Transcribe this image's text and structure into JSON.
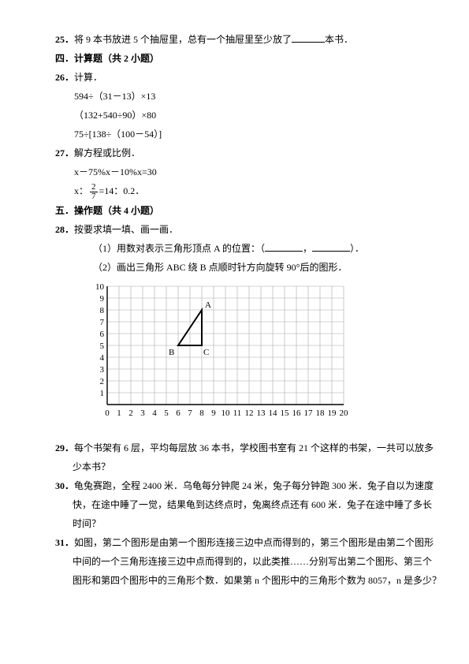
{
  "q25": {
    "num": "25．",
    "pre": "将 9 本书放进 5 个抽屉里，总有一个抽屉里至少放了",
    "post": "本书．"
  },
  "sec4": {
    "title": "四．计算题（共 2 小题）"
  },
  "q26": {
    "num": "26．",
    "title": "计算．",
    "l1": "594÷（31－13）×13",
    "l2": "（132+540÷90）×80",
    "l3": "75÷[138÷（100－54）]"
  },
  "q27": {
    "num": "27．",
    "title": "解方程或比例．",
    "l1": "x－75%x－10%x=30",
    "l2_pre": "x：",
    "frac_num": "2",
    "frac_den": "7",
    "l2_post": "=14：0.2．"
  },
  "sec5": {
    "title": "五．操作题（共 4 小题）"
  },
  "q28": {
    "num": "28．",
    "title": "按要求填一填、画一画．",
    "p1_pre": "（1）用数对表示三角形顶点 A 的位置：（",
    "p1_mid": "，",
    "p1_post": "）．",
    "p2": "（2）画出三角形 ABC 绕 B 点顺时针方向旋转 90°后的图形．"
  },
  "chart": {
    "grid": {
      "cols": 20,
      "rows": 10,
      "cell": 15
    },
    "axis_color": "#000000",
    "grid_color": "#a8a8a8",
    "background": "#ffffff",
    "x_ticks": [
      0,
      1,
      2,
      3,
      4,
      5,
      6,
      7,
      8,
      9,
      10,
      11,
      12,
      13,
      14,
      15,
      16,
      17,
      18,
      19,
      20
    ],
    "y_ticks": [
      1,
      2,
      3,
      4,
      5,
      6,
      7,
      8,
      9,
      10
    ],
    "triangle": {
      "B": [
        6,
        5
      ],
      "C": [
        8,
        5
      ],
      "A": [
        8,
        8
      ],
      "stroke": "#000000",
      "fill": "none",
      "stroke_width": 2
    },
    "labels": {
      "A": "A",
      "B": "B",
      "C": "C"
    }
  },
  "q29": {
    "num": "29．",
    "l1": "每个书架有 6 层，平均每层放 36 本书，学校图书室有 21 个这样的书架，一共可以放多",
    "l2": "少本书？"
  },
  "q30": {
    "num": "30．",
    "l1": "龟兔赛跑，全程 2400 米．乌龟每分钟爬 24 米，兔子每分钟跑 300 米．兔子自以为速度",
    "l2": "快，在途中睡了一觉，结果龟到达终点时，兔离终点还有 600 米．兔子在途中睡了多长",
    "l3": "时间？"
  },
  "q31": {
    "num": "31．",
    "l1": "如图，第二个图形是由第一个图形连接三边中点而得到的，第三个图形是由第二个图形",
    "l2": "中间的一个三角形连接三边中点而得到的，以此类推……分别写出第二个图形、第三个",
    "l3": "图形和第四个图形中的三角形个数．如果第 n 个图形中的三角形个数为 8057，n 是多少？"
  }
}
